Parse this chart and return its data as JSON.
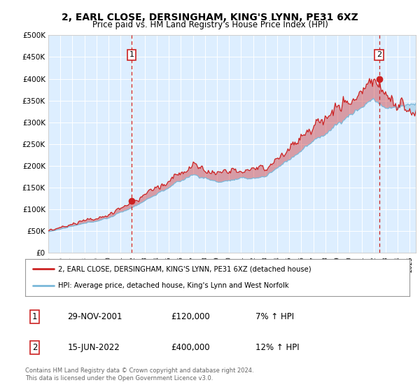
{
  "title": "2, EARL CLOSE, DERSINGHAM, KING'S LYNN, PE31 6XZ",
  "subtitle": "Price paid vs. HM Land Registry's House Price Index (HPI)",
  "legend_line1": "2, EARL CLOSE, DERSINGHAM, KING'S LYNN, PE31 6XZ (detached house)",
  "legend_line2": "HPI: Average price, detached house, King's Lynn and West Norfolk",
  "transaction1_date": "29-NOV-2001",
  "transaction1_price": "£120,000",
  "transaction1_hpi": "7% ↑ HPI",
  "transaction2_date": "15-JUN-2022",
  "transaction2_price": "£400,000",
  "transaction2_hpi": "12% ↑ HPI",
  "footer": "Contains HM Land Registry data © Crown copyright and database right 2024.\nThis data is licensed under the Open Government Licence v3.0.",
  "xmin": 1995.0,
  "xmax": 2025.5,
  "ymin": 0,
  "ymax": 500000,
  "yticks": [
    0,
    50000,
    100000,
    150000,
    200000,
    250000,
    300000,
    350000,
    400000,
    450000,
    500000
  ],
  "xticks": [
    1995,
    1996,
    1997,
    1998,
    1999,
    2000,
    2001,
    2002,
    2003,
    2004,
    2005,
    2006,
    2007,
    2008,
    2009,
    2010,
    2011,
    2012,
    2013,
    2014,
    2015,
    2016,
    2017,
    2018,
    2019,
    2020,
    2021,
    2022,
    2023,
    2024,
    2025
  ],
  "transaction1_x": 2001.917,
  "transaction1_y": 120000,
  "transaction2_x": 2022.458,
  "transaction2_y": 400000,
  "hpi_color": "#7ab8d9",
  "price_color": "#cc2222",
  "vline_color": "#cc2222",
  "fill_color": "#e8a0a0",
  "plot_bg_color": "#ddeeff",
  "grid_color": "#ffffff"
}
